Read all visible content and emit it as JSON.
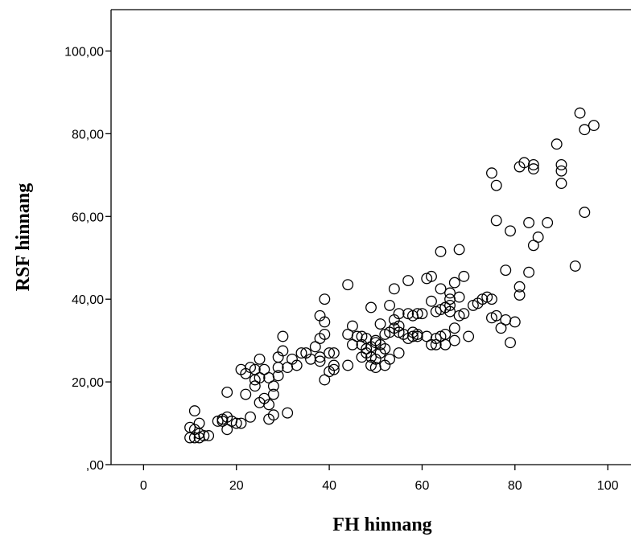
{
  "chart_data": {
    "type": "scatter",
    "xlabel": "FH hinnang",
    "ylabel": "RSF hinnang",
    "xlim": [
      -7,
      105
    ],
    "ylim": [
      0,
      110
    ],
    "xticks": [
      0,
      20,
      40,
      60,
      80,
      100
    ],
    "xtick_labels": [
      "0",
      "20",
      "40",
      "60",
      "80",
      "100"
    ],
    "yticks": [
      0,
      20,
      40,
      60,
      80,
      100
    ],
    "ytick_labels": [
      ",00",
      "20,00",
      "40,00",
      "60,00",
      "80,00",
      "100,00"
    ],
    "grid": false,
    "marker": "open-circle",
    "series": [
      {
        "points": [
          [
            10,
            6.5
          ],
          [
            10,
            9
          ],
          [
            11,
            6.5
          ],
          [
            11,
            8.5
          ],
          [
            11,
            13
          ],
          [
            12,
            6.5
          ],
          [
            12,
            7.5
          ],
          [
            12,
            10
          ],
          [
            13,
            7
          ],
          [
            14,
            7
          ],
          [
            16,
            10.5
          ],
          [
            17,
            10.5
          ],
          [
            17,
            11
          ],
          [
            18,
            8.5
          ],
          [
            18,
            11.5
          ],
          [
            18,
            17.5
          ],
          [
            19,
            10.5
          ],
          [
            20,
            10
          ],
          [
            21,
            10
          ],
          [
            21,
            23
          ],
          [
            22,
            17
          ],
          [
            22,
            22
          ],
          [
            23,
            11.5
          ],
          [
            23,
            23.5
          ],
          [
            24,
            19
          ],
          [
            24,
            20.5
          ],
          [
            24,
            23
          ],
          [
            25,
            15
          ],
          [
            25,
            21
          ],
          [
            25,
            25.5
          ],
          [
            26,
            16
          ],
          [
            26,
            23
          ],
          [
            27,
            11
          ],
          [
            27,
            14.5
          ],
          [
            27,
            21
          ],
          [
            28,
            17
          ],
          [
            28,
            19
          ],
          [
            28,
            12
          ],
          [
            29,
            21.5
          ],
          [
            29,
            23.5
          ],
          [
            29,
            26
          ],
          [
            30,
            27.5
          ],
          [
            30,
            31
          ],
          [
            31,
            12.5
          ],
          [
            31,
            23.5
          ],
          [
            32,
            25.5
          ],
          [
            33,
            24
          ],
          [
            34,
            27
          ],
          [
            35,
            27
          ],
          [
            36,
            25.5
          ],
          [
            37,
            28.5
          ],
          [
            38,
            25
          ],
          [
            38,
            26
          ],
          [
            38,
            30.5
          ],
          [
            38,
            36
          ],
          [
            39,
            20.5
          ],
          [
            39,
            31.5
          ],
          [
            39,
            34.5
          ],
          [
            39,
            40
          ],
          [
            40,
            22.5
          ],
          [
            40,
            27
          ],
          [
            41,
            23
          ],
          [
            41,
            24
          ],
          [
            41,
            27
          ],
          [
            44,
            24
          ],
          [
            44,
            31.5
          ],
          [
            44,
            43.5
          ],
          [
            45,
            29
          ],
          [
            45,
            33.5
          ],
          [
            46,
            31
          ],
          [
            47,
            26
          ],
          [
            47,
            29
          ],
          [
            47,
            31
          ],
          [
            48,
            27
          ],
          [
            48,
            28
          ],
          [
            48,
            30.5
          ],
          [
            49,
            24
          ],
          [
            49,
            26
          ],
          [
            49,
            28.5
          ],
          [
            49,
            38
          ],
          [
            50,
            23.5
          ],
          [
            50,
            25.5
          ],
          [
            50,
            29.5
          ],
          [
            50,
            30
          ],
          [
            51,
            27
          ],
          [
            51,
            29
          ],
          [
            51,
            34
          ],
          [
            52,
            24
          ],
          [
            52,
            28
          ],
          [
            52,
            31.5
          ],
          [
            53,
            25.5
          ],
          [
            53,
            32
          ],
          [
            53,
            38.5
          ],
          [
            54,
            33
          ],
          [
            54,
            35
          ],
          [
            54,
            42.5
          ],
          [
            55,
            27
          ],
          [
            55,
            32
          ],
          [
            55,
            33.5
          ],
          [
            55,
            36.5
          ],
          [
            56,
            31.5
          ],
          [
            57,
            30.5
          ],
          [
            57,
            36.5
          ],
          [
            57,
            44.5
          ],
          [
            58,
            31
          ],
          [
            58,
            32
          ],
          [
            58,
            36
          ],
          [
            59,
            31
          ],
          [
            59,
            31.5
          ],
          [
            59,
            36.5
          ],
          [
            60,
            36.5
          ],
          [
            61,
            31
          ],
          [
            61,
            45
          ],
          [
            62,
            29
          ],
          [
            62,
            39.5
          ],
          [
            62,
            45.5
          ],
          [
            63,
            29
          ],
          [
            63,
            30.5
          ],
          [
            63,
            37
          ],
          [
            64,
            31
          ],
          [
            64,
            37.5
          ],
          [
            64,
            42.5
          ],
          [
            64,
            51.5
          ],
          [
            65,
            29
          ],
          [
            65,
            31.5
          ],
          [
            65,
            38
          ],
          [
            66,
            37
          ],
          [
            66,
            38.5
          ],
          [
            66,
            40
          ],
          [
            66,
            41.5
          ],
          [
            67,
            30
          ],
          [
            67,
            33
          ],
          [
            67,
            44
          ],
          [
            68,
            36
          ],
          [
            68,
            40.5
          ],
          [
            68,
            52
          ],
          [
            69,
            36.5
          ],
          [
            69,
            45.5
          ],
          [
            70,
            31
          ],
          [
            71,
            38.5
          ],
          [
            72,
            39
          ],
          [
            73,
            40
          ],
          [
            74,
            40.5
          ],
          [
            75,
            35.5
          ],
          [
            75,
            40
          ],
          [
            75,
            70.5
          ],
          [
            76,
            36
          ],
          [
            76,
            59
          ],
          [
            76,
            67.5
          ],
          [
            77,
            33
          ],
          [
            78,
            35
          ],
          [
            78,
            47
          ],
          [
            79,
            29.5
          ],
          [
            79,
            56.5
          ],
          [
            80,
            34.5
          ],
          [
            81,
            41
          ],
          [
            81,
            43
          ],
          [
            81,
            72
          ],
          [
            82,
            73
          ],
          [
            83,
            46.5
          ],
          [
            83,
            58.5
          ],
          [
            84,
            53
          ],
          [
            84,
            71.5
          ],
          [
            84,
            72.5
          ],
          [
            85,
            55
          ],
          [
            87,
            58.5
          ],
          [
            89,
            77.5
          ],
          [
            90,
            68
          ],
          [
            90,
            71
          ],
          [
            90,
            72.5
          ],
          [
            93,
            48
          ],
          [
            94,
            85
          ],
          [
            95,
            61
          ],
          [
            95,
            81
          ],
          [
            97,
            82
          ]
        ]
      }
    ]
  }
}
